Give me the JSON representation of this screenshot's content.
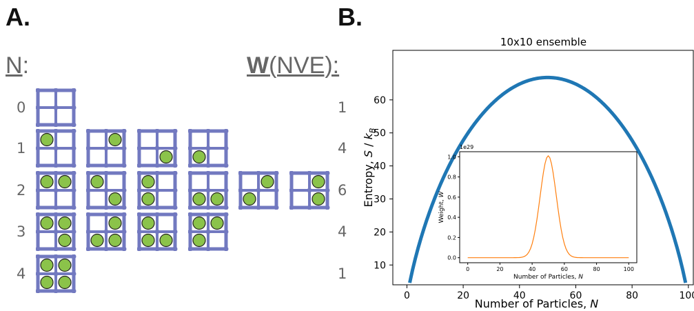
{
  "panel_a": {
    "label": "A.",
    "n_header": "N",
    "n_colon": ":",
    "w_header": "W",
    "w_paren": "(NVE):",
    "rows": [
      {
        "n": "0",
        "w": "1",
        "configs": [
          [
            0,
            0,
            0,
            0
          ]
        ]
      },
      {
        "n": "1",
        "w": "4",
        "configs": [
          [
            1,
            0,
            0,
            0
          ],
          [
            0,
            1,
            0,
            0
          ],
          [
            0,
            0,
            0,
            1
          ],
          [
            0,
            0,
            1,
            0
          ]
        ]
      },
      {
        "n": "2",
        "w": "6",
        "configs": [
          [
            1,
            1,
            0,
            0
          ],
          [
            1,
            0,
            0,
            1
          ],
          [
            1,
            0,
            1,
            0
          ],
          [
            0,
            0,
            1,
            1
          ],
          [
            0,
            1,
            1,
            0
          ],
          [
            0,
            1,
            0,
            1
          ]
        ]
      },
      {
        "n": "3",
        "w": "4",
        "configs": [
          [
            1,
            1,
            0,
            1
          ],
          [
            0,
            1,
            1,
            1
          ],
          [
            1,
            0,
            1,
            1
          ],
          [
            1,
            1,
            1,
            0
          ]
        ]
      },
      {
        "n": "4",
        "w": "1",
        "configs": [
          [
            1,
            1,
            1,
            1
          ]
        ]
      }
    ]
  },
  "panel_b": {
    "label": "B."
  },
  "colors": {
    "lattice": "#7279c0",
    "particle": "#8bc34a",
    "main_curve": "#1f77b4",
    "inset_curve": "#ff7f0e",
    "header_gray": "#666666"
  },
  "chart_data": [
    {
      "type": "line",
      "title": "10x10 ensemble",
      "xlabel": "Number of Particles, N",
      "ylabel": "Entropy, S / k_B",
      "xlim": [
        -5,
        102
      ],
      "ylim": [
        4,
        75
      ],
      "xticks": [
        0,
        20,
        40,
        60,
        80,
        100
      ],
      "yticks": [
        10,
        20,
        30,
        40,
        50,
        60
      ],
      "series": [
        {
          "function": "S(N) = ln C(100, N)",
          "x_range": [
            1,
            99
          ]
        }
      ]
    },
    {
      "type": "line",
      "xlabel": "Number of Particles, N",
      "ylabel": "Weight, W",
      "scale_note": "1e29",
      "xlim": [
        -5,
        105
      ],
      "ylim": [
        -0.05,
        1.05
      ],
      "xticks": [
        0,
        20,
        40,
        60,
        80,
        100
      ],
      "yticks": [
        0.0,
        0.2,
        0.4,
        0.6,
        0.8,
        1.0
      ],
      "series": [
        {
          "function": "W(N) = C(100, N) / 1e29",
          "x_range": [
            0,
            100
          ]
        }
      ]
    }
  ]
}
